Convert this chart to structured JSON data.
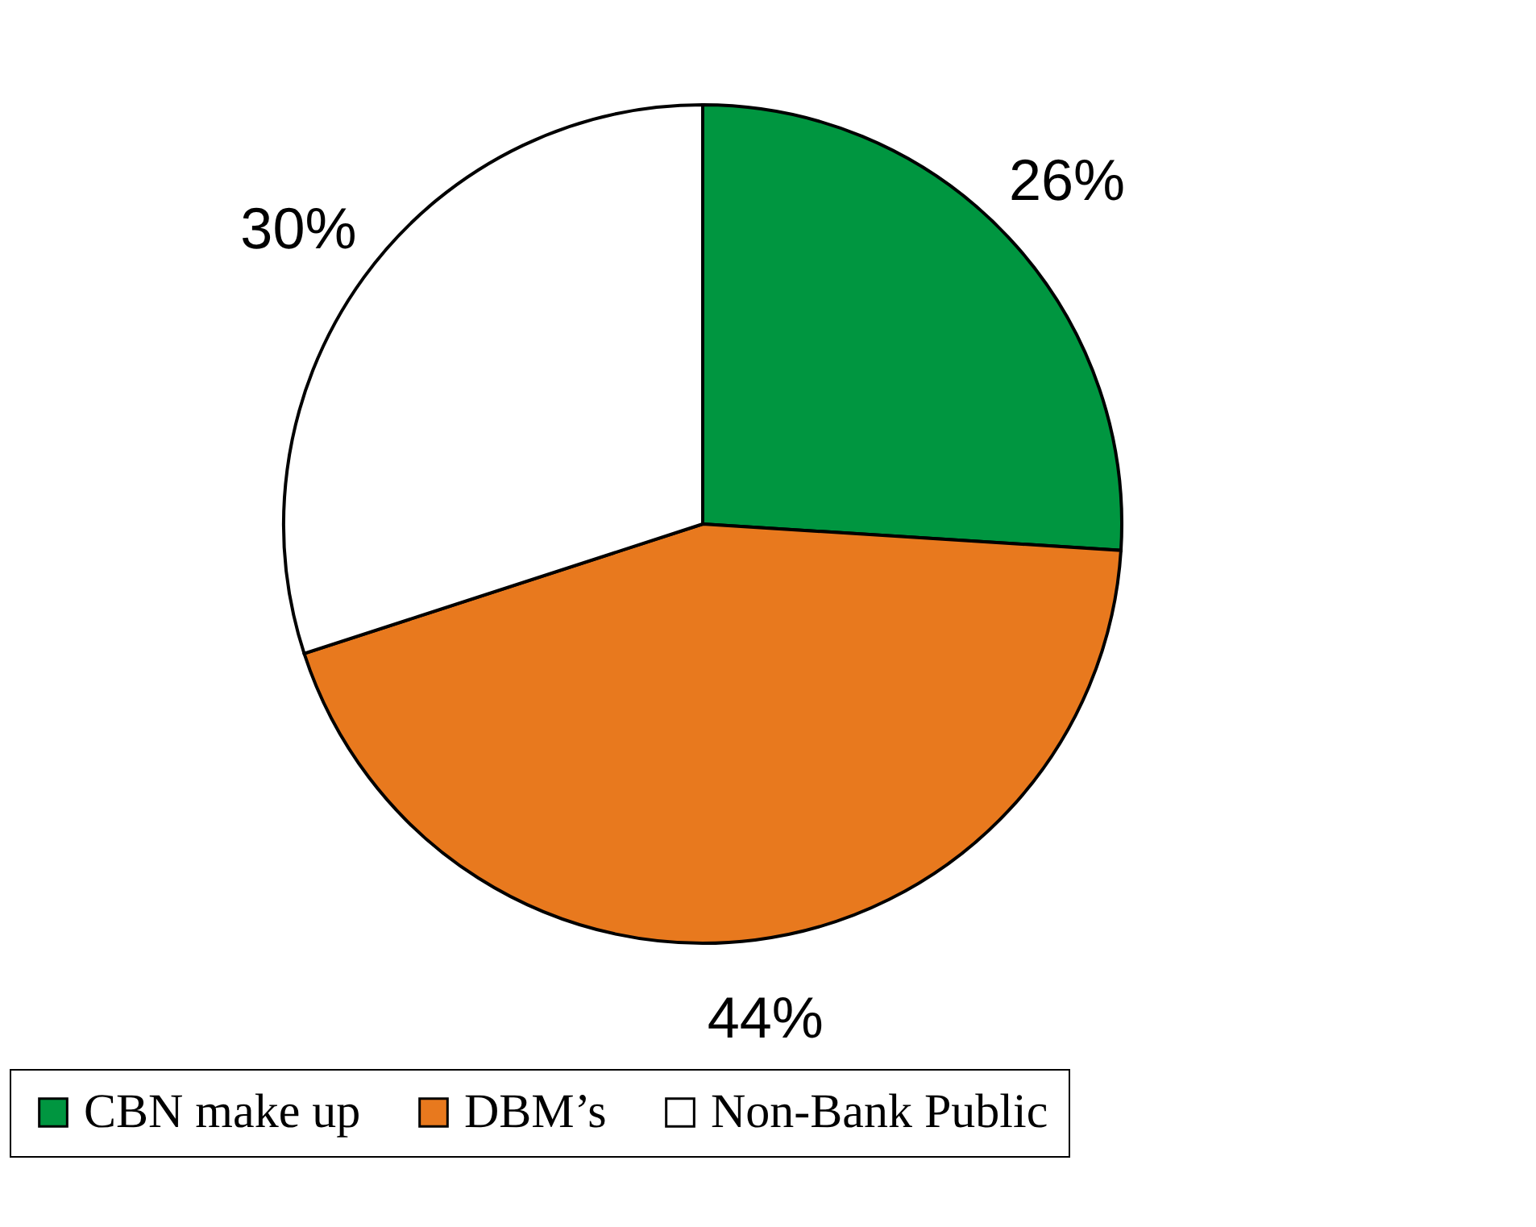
{
  "chart_data": {
    "type": "pie",
    "categories": [
      "CBN make up",
      "DBM’s",
      "Non-Bank Public"
    ],
    "values": [
      26,
      44,
      30
    ],
    "colors": [
      "#009640",
      "#e8791e",
      "#ffffff"
    ],
    "value_labels": [
      "26%",
      "44%",
      "30%"
    ],
    "legend": "bottom"
  }
}
